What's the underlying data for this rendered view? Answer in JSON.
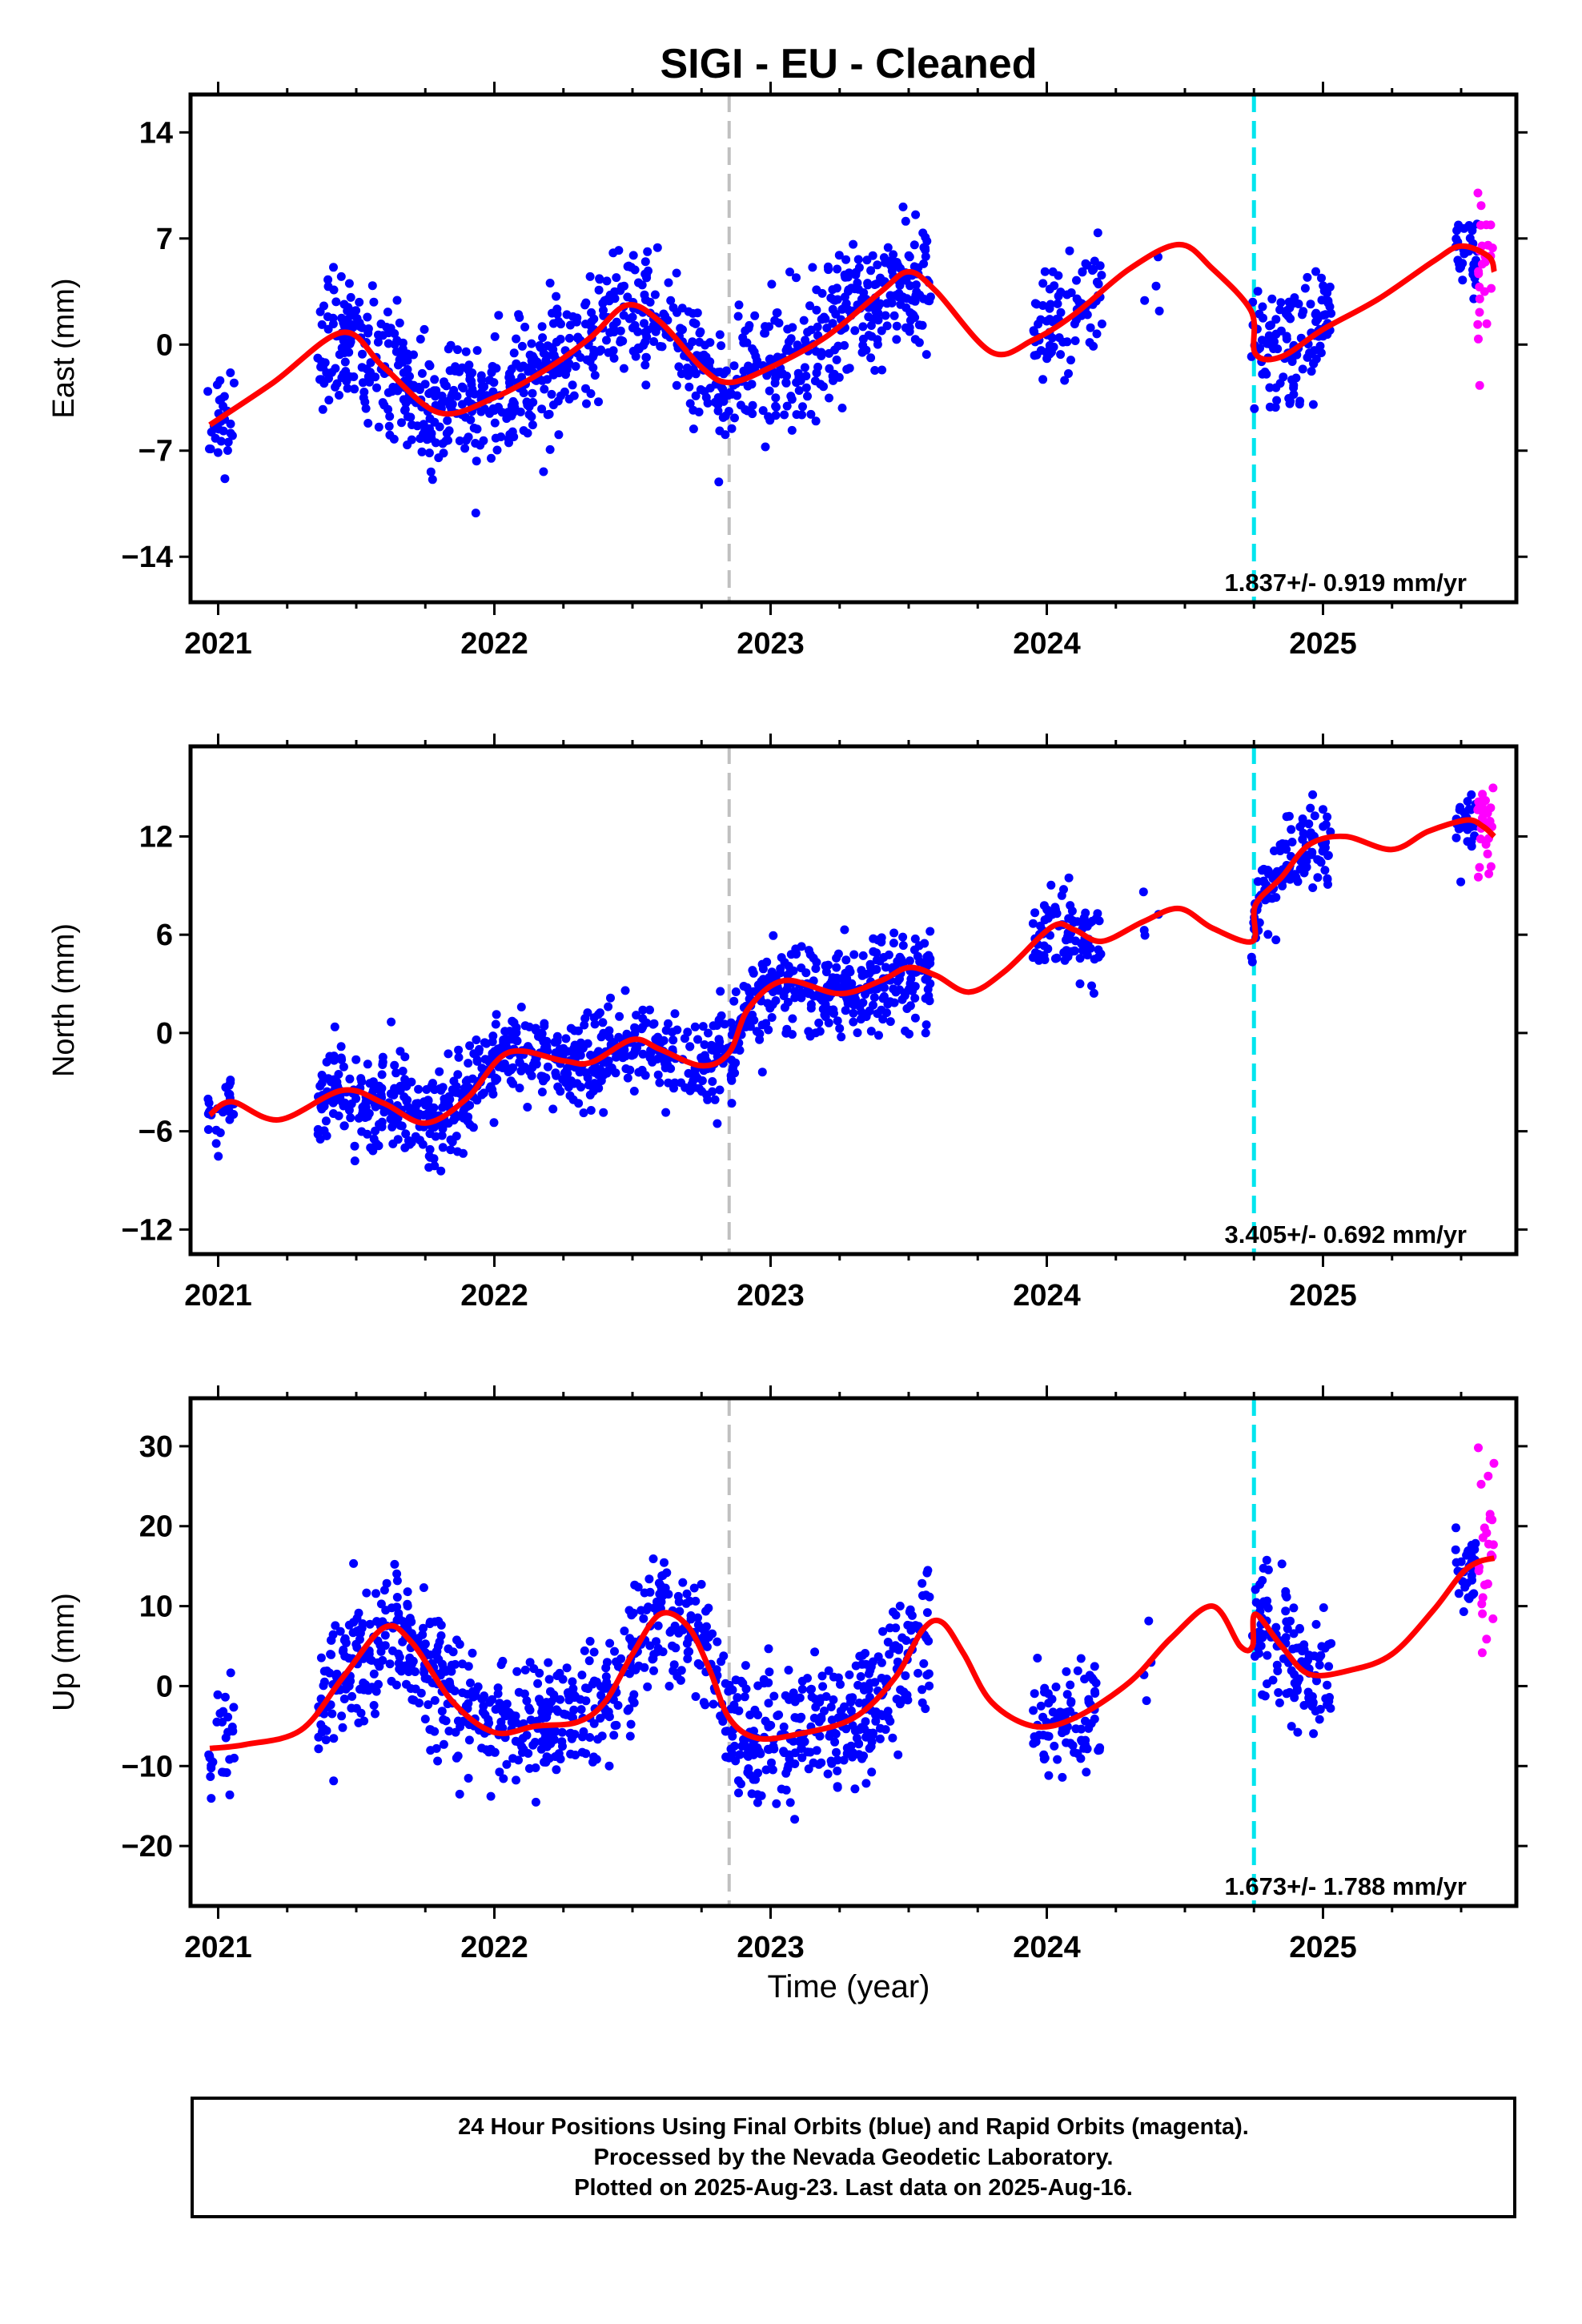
{
  "title": "SIGI  - EU - Cleaned",
  "xlabel": "Time (year)",
  "footer": {
    "line1": "24 Hour Positions Using Final Orbits (blue) and Rapid Orbits (magenta).",
    "line2": "Processed by the Nevada Geodetic Laboratory.",
    "line3": "Plotted on 2025-Aug-23. Last data on 2025-Aug-16."
  },
  "colors": {
    "final": "#0000ff",
    "rapid": "#ff00ff",
    "model": "#ff0000",
    "equipment_change": "#c0c0c0",
    "earthquake": "#00e5ee"
  },
  "chart_data": [
    {
      "type": "scatter",
      "panel": "east",
      "ylabel": "East (mm)",
      "xlim": [
        2020.9,
        2025.7
      ],
      "ylim": [
        -17,
        16.5
      ],
      "yticks": [
        -14,
        -7,
        0,
        7,
        14
      ],
      "xticks": [
        2021,
        2022,
        2023,
        2024,
        2025
      ],
      "rate_label": "1.837+/- 0.919 mm/yr",
      "vlines": {
        "gray": 2022.85,
        "cyan": 2024.75
      },
      "model_knots": [
        [
          2020.97,
          -5.3
        ],
        [
          2021.2,
          -2.5
        ],
        [
          2021.45,
          0.8
        ],
        [
          2021.6,
          -1.5
        ],
        [
          2021.8,
          -4.5
        ],
        [
          2022.0,
          -3.5
        ],
        [
          2022.2,
          -1.5
        ],
        [
          2022.35,
          0.5
        ],
        [
          2022.48,
          2.6
        ],
        [
          2022.6,
          1.5
        ],
        [
          2022.75,
          -1.5
        ],
        [
          2022.85,
          -2.5
        ],
        [
          2023.0,
          -1.5
        ],
        [
          2023.2,
          0.5
        ],
        [
          2023.4,
          3.5
        ],
        [
          2023.5,
          4.8
        ],
        [
          2023.6,
          3.5
        ],
        [
          2023.8,
          -0.5
        ],
        [
          2023.95,
          0.3
        ],
        [
          2024.1,
          2.0
        ],
        [
          2024.3,
          5.0
        ],
        [
          2024.48,
          6.6
        ],
        [
          2024.6,
          5.0
        ],
        [
          2024.74,
          2.2
        ],
        [
          2024.755,
          -0.6
        ],
        [
          2024.85,
          -0.8
        ],
        [
          2025.0,
          1.0
        ],
        [
          2025.2,
          3.0
        ],
        [
          2025.4,
          5.5
        ],
        [
          2025.5,
          6.5
        ],
        [
          2025.6,
          5.8
        ],
        [
          2025.62,
          4.8
        ]
      ],
      "clusters": [
        {
          "start": 2020.96,
          "end": 2021.06,
          "n": 28,
          "seed": 11,
          "sd": 1.8
        },
        {
          "start": 2021.36,
          "end": 2021.63,
          "n": 125,
          "seed": 12,
          "sd": 2.0
        },
        {
          "start": 2021.63,
          "end": 2022.0,
          "n": 175,
          "seed": 13,
          "sd": 2.0
        },
        {
          "start": 2022.0,
          "end": 2022.3,
          "n": 140,
          "seed": 14,
          "sd": 2.0
        },
        {
          "start": 2022.3,
          "end": 2022.85,
          "n": 210,
          "seed": 15,
          "sd": 2.0
        },
        {
          "start": 2022.85,
          "end": 2023.3,
          "n": 190,
          "seed": 16,
          "sd": 2.3
        },
        {
          "start": 2023.3,
          "end": 2023.58,
          "n": 130,
          "seed": 17,
          "sd": 2.0
        },
        {
          "start": 2023.95,
          "end": 2024.2,
          "n": 85,
          "seed": 18,
          "sd": 2.1
        },
        {
          "start": 2024.35,
          "end": 2024.42,
          "n": 4,
          "seed": 19,
          "sd": 1.8
        },
        {
          "start": 2024.74,
          "end": 2025.03,
          "n": 120,
          "seed": 20,
          "sd": 2.0
        },
        {
          "start": 2025.48,
          "end": 2025.56,
          "n": 30,
          "seed": 21,
          "sd": 1.3
        }
      ],
      "rapid": {
        "start": 2025.56,
        "end": 2025.62,
        "n": 24,
        "seed": 22,
        "sd": 2.8
      }
    },
    {
      "type": "scatter",
      "panel": "north",
      "ylabel": "North (mm)",
      "xlim": [
        2020.9,
        2025.7
      ],
      "ylim": [
        -13.5,
        17.5
      ],
      "yticks": [
        -12,
        -6,
        0,
        6,
        12
      ],
      "xticks": [
        2021,
        2022,
        2023,
        2024,
        2025
      ],
      "rate_label": "3.405+/- 0.692 mm/yr",
      "vlines": {
        "gray": 2022.85,
        "cyan": 2024.75
      },
      "model_knots": [
        [
          2020.97,
          -5.0
        ],
        [
          2021.05,
          -4.2
        ],
        [
          2021.22,
          -5.3
        ],
        [
          2021.45,
          -3.5
        ],
        [
          2021.6,
          -4.3
        ],
        [
          2021.75,
          -5.5
        ],
        [
          2021.9,
          -4.0
        ],
        [
          2022.05,
          -1.2
        ],
        [
          2022.25,
          -1.7
        ],
        [
          2022.35,
          -1.8
        ],
        [
          2022.5,
          -0.4
        ],
        [
          2022.6,
          -1.0
        ],
        [
          2022.75,
          -2.0
        ],
        [
          2022.85,
          -1.2
        ],
        [
          2022.92,
          1.5
        ],
        [
          2023.05,
          3.2
        ],
        [
          2023.25,
          2.4
        ],
        [
          2023.4,
          3.2
        ],
        [
          2023.5,
          4.0
        ],
        [
          2023.6,
          3.5
        ],
        [
          2023.72,
          2.5
        ],
        [
          2023.85,
          3.8
        ],
        [
          2024.02,
          6.5
        ],
        [
          2024.1,
          6.3
        ],
        [
          2024.2,
          5.6
        ],
        [
          2024.35,
          6.8
        ],
        [
          2024.48,
          7.6
        ],
        [
          2024.6,
          6.4
        ],
        [
          2024.745,
          5.6
        ],
        [
          2024.755,
          7.8
        ],
        [
          2024.85,
          9.5
        ],
        [
          2024.95,
          11.5
        ],
        [
          2025.08,
          12.0
        ],
        [
          2025.25,
          11.2
        ],
        [
          2025.38,
          12.3
        ],
        [
          2025.52,
          13.0
        ],
        [
          2025.58,
          12.6
        ],
        [
          2025.62,
          12.0
        ]
      ],
      "clusters": [
        {
          "start": 2020.96,
          "end": 2021.06,
          "n": 28,
          "seed": 31,
          "sd": 1.2
        },
        {
          "start": 2021.36,
          "end": 2021.63,
          "n": 125,
          "seed": 32,
          "sd": 1.4
        },
        {
          "start": 2021.63,
          "end": 2022.0,
          "n": 175,
          "seed": 33,
          "sd": 1.5
        },
        {
          "start": 2022.0,
          "end": 2022.3,
          "n": 140,
          "seed": 34,
          "sd": 1.3
        },
        {
          "start": 2022.3,
          "end": 2022.85,
          "n": 210,
          "seed": 35,
          "sd": 1.5
        },
        {
          "start": 2022.85,
          "end": 2023.3,
          "n": 190,
          "seed": 36,
          "sd": 1.4
        },
        {
          "start": 2023.3,
          "end": 2023.58,
          "n": 130,
          "seed": 37,
          "sd": 1.5
        },
        {
          "start": 2023.95,
          "end": 2024.2,
          "n": 85,
          "seed": 38,
          "sd": 1.3
        },
        {
          "start": 2024.35,
          "end": 2024.42,
          "n": 4,
          "seed": 39,
          "sd": 1.2
        },
        {
          "start": 2024.74,
          "end": 2025.03,
          "n": 120,
          "seed": 40,
          "sd": 1.3
        },
        {
          "start": 2025.48,
          "end": 2025.56,
          "n": 30,
          "seed": 41,
          "sd": 1.0
        }
      ],
      "rapid": {
        "start": 2025.56,
        "end": 2025.62,
        "n": 24,
        "seed": 42,
        "sd": 1.4
      }
    },
    {
      "type": "scatter",
      "panel": "up",
      "ylabel": "Up (mm)",
      "xlim": [
        2020.9,
        2025.7
      ],
      "ylim": [
        -27.5,
        36
      ],
      "yticks": [
        -20,
        -10,
        0,
        10,
        20,
        30
      ],
      "xticks": [
        2021,
        2022,
        2023,
        2024,
        2025
      ],
      "rate_label": "1.673+/- 1.788 mm/yr",
      "vlines": {
        "gray": 2022.85,
        "cyan": 2024.75
      },
      "model_knots": [
        [
          2020.97,
          -7.8
        ],
        [
          2021.1,
          -7.3
        ],
        [
          2021.3,
          -5.5
        ],
        [
          2021.45,
          1.0
        ],
        [
          2021.6,
          7.3
        ],
        [
          2021.7,
          5.5
        ],
        [
          2021.85,
          -2.0
        ],
        [
          2022.0,
          -5.8
        ],
        [
          2022.15,
          -5.0
        ],
        [
          2022.3,
          -4.5
        ],
        [
          2022.4,
          -2.0
        ],
        [
          2022.5,
          4.0
        ],
        [
          2022.6,
          9.0
        ],
        [
          2022.7,
          7.5
        ],
        [
          2022.78,
          2.0
        ],
        [
          2022.85,
          -4.0
        ],
        [
          2022.95,
          -6.5
        ],
        [
          2023.1,
          -6.0
        ],
        [
          2023.3,
          -4.0
        ],
        [
          2023.45,
          1.0
        ],
        [
          2023.55,
          7.0
        ],
        [
          2023.62,
          8.0
        ],
        [
          2023.7,
          4.0
        ],
        [
          2023.8,
          -2.0
        ],
        [
          2023.95,
          -5.0
        ],
        [
          2024.1,
          -4.0
        ],
        [
          2024.3,
          0.5
        ],
        [
          2024.45,
          6.0
        ],
        [
          2024.6,
          10.0
        ],
        [
          2024.7,
          5.0
        ],
        [
          2024.745,
          5.0
        ],
        [
          2024.755,
          9.0
        ],
        [
          2024.85,
          5.0
        ],
        [
          2024.95,
          1.5
        ],
        [
          2025.1,
          2.0
        ],
        [
          2025.25,
          4.0
        ],
        [
          2025.4,
          9.5
        ],
        [
          2025.5,
          14.0
        ],
        [
          2025.56,
          15.5
        ],
        [
          2025.62,
          16.0
        ]
      ],
      "clusters": [
        {
          "start": 2020.96,
          "end": 2021.06,
          "n": 28,
          "seed": 51,
          "sd": 3.2
        },
        {
          "start": 2021.36,
          "end": 2021.63,
          "n": 125,
          "seed": 52,
          "sd": 3.8
        },
        {
          "start": 2021.63,
          "end": 2022.0,
          "n": 175,
          "seed": 53,
          "sd": 3.8
        },
        {
          "start": 2022.0,
          "end": 2022.3,
          "n": 140,
          "seed": 54,
          "sd": 3.8
        },
        {
          "start": 2022.3,
          "end": 2022.85,
          "n": 210,
          "seed": 55,
          "sd": 4.0
        },
        {
          "start": 2022.85,
          "end": 2023.3,
          "n": 190,
          "seed": 56,
          "sd": 3.8
        },
        {
          "start": 2023.3,
          "end": 2023.58,
          "n": 130,
          "seed": 57,
          "sd": 4.5
        },
        {
          "start": 2023.95,
          "end": 2024.2,
          "n": 85,
          "seed": 58,
          "sd": 4.0
        },
        {
          "start": 2024.35,
          "end": 2024.42,
          "n": 4,
          "seed": 59,
          "sd": 3.5
        },
        {
          "start": 2024.74,
          "end": 2025.03,
          "n": 120,
          "seed": 60,
          "sd": 4.5
        },
        {
          "start": 2025.48,
          "end": 2025.56,
          "n": 30,
          "seed": 61,
          "sd": 3.5
        }
      ],
      "rapid": {
        "start": 2025.56,
        "end": 2025.62,
        "n": 24,
        "seed": 62,
        "sd": 7.0
      }
    }
  ]
}
